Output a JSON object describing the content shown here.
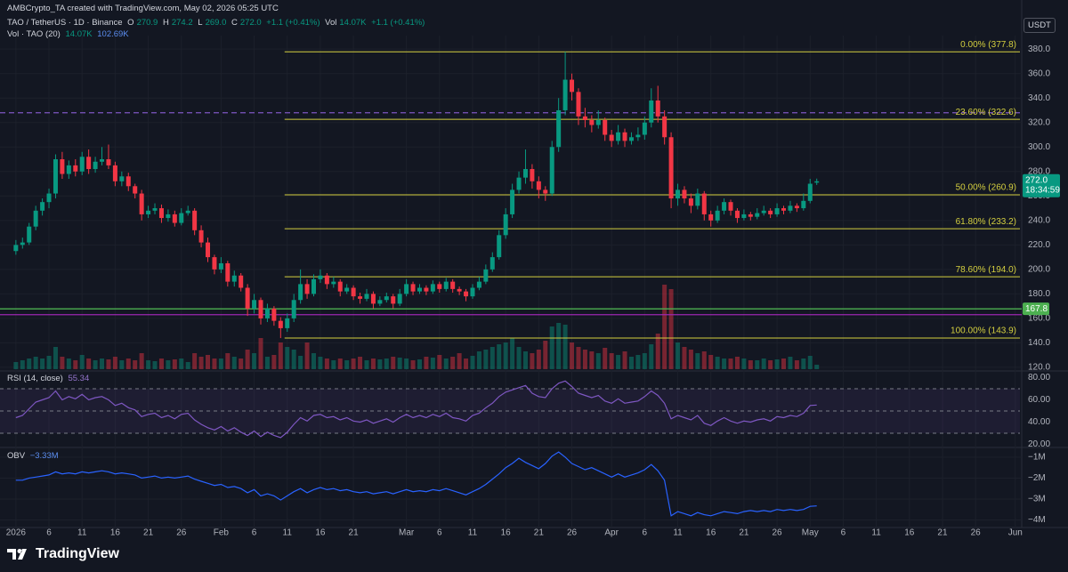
{
  "header": {
    "credit": "AMBCrypto_TA created with TradingView.com, May 02, 2026 05:25 UTC",
    "symbol": "TAO / TetherUS · 1D · Binance",
    "ohlc": [
      {
        "key": "O",
        "value": "270.9"
      },
      {
        "key": "H",
        "value": "274.2"
      },
      {
        "key": "L",
        "value": "269.0"
      },
      {
        "key": "C",
        "value": "272.0"
      }
    ],
    "change": "+1.1 (+0.41%)",
    "vol_key": "Vol",
    "vol_value": "14.07K",
    "vol_change": "+1.1 (+0.41%)",
    "vol_indicator": "Vol · TAO (20)",
    "vol_indicator_values": [
      "14.07K",
      "102.69K"
    ],
    "rsi_label": "RSI (14, close)",
    "rsi_value": "55.34",
    "obv_label": "OBV",
    "obv_value": "−3.33M",
    "currency": "USDT",
    "brand": "TradingView"
  },
  "chart_data": {
    "type": "candlestick",
    "up_color": "#089981",
    "down_color": "#f23645",
    "xlim": [
      -2.4,
      151.7
    ],
    "xticks": [
      {
        "value": 0,
        "label": "2026"
      },
      {
        "value": 5,
        "label": "6"
      },
      {
        "value": 10,
        "label": "11"
      },
      {
        "value": 15,
        "label": "16"
      },
      {
        "value": 20,
        "label": "21"
      },
      {
        "value": 25,
        "label": "26"
      },
      {
        "value": 31,
        "label": "Feb"
      },
      {
        "value": 36,
        "label": "6"
      },
      {
        "value": 41,
        "label": "11"
      },
      {
        "value": 46,
        "label": "16"
      },
      {
        "value": 51,
        "label": "21"
      },
      {
        "value": 59,
        "label": "Mar"
      },
      {
        "value": 64,
        "label": "6"
      },
      {
        "value": 69,
        "label": "11"
      },
      {
        "value": 74,
        "label": "16"
      },
      {
        "value": 79,
        "label": "21"
      },
      {
        "value": 84,
        "label": "26"
      },
      {
        "value": 90,
        "label": "Apr"
      },
      {
        "value": 95,
        "label": "6"
      },
      {
        "value": 100,
        "label": "11"
      },
      {
        "value": 105,
        "label": "16"
      },
      {
        "value": 110,
        "label": "21"
      },
      {
        "value": 115,
        "label": "26"
      },
      {
        "value": 120,
        "label": "May"
      },
      {
        "value": 125,
        "label": "6"
      },
      {
        "value": 130,
        "label": "11"
      },
      {
        "value": 135,
        "label": "16"
      },
      {
        "value": 140,
        "label": "21"
      },
      {
        "value": 145,
        "label": "26"
      },
      {
        "value": 151,
        "label": "Jun"
      }
    ],
    "ylim": [
      118.5,
      398.3
    ],
    "yticks": [
      {
        "value": 120,
        "label": "120.0"
      },
      {
        "value": 140,
        "label": "140.0"
      },
      {
        "value": 160,
        "label": "160.0"
      },
      {
        "value": 180,
        "label": "180.0"
      },
      {
        "value": 200,
        "label": "200.0"
      },
      {
        "value": 220,
        "label": "220.0"
      },
      {
        "value": 240,
        "label": "240.0"
      },
      {
        "value": 260,
        "label": "260.0"
      },
      {
        "value": 280,
        "label": "280.0"
      },
      {
        "value": 300,
        "label": "300.0"
      },
      {
        "value": 320,
        "label": "320.0"
      },
      {
        "value": 340,
        "label": "340.0"
      },
      {
        "value": 360,
        "label": "360.0"
      },
      {
        "value": 380,
        "label": "380.0"
      }
    ],
    "x": [
      0,
      1,
      2,
      3,
      4,
      5,
      6,
      7,
      8,
      9,
      10,
      11,
      12,
      13,
      14,
      15,
      16,
      17,
      18,
      19,
      20,
      21,
      22,
      23,
      24,
      25,
      26,
      27,
      28,
      29,
      30,
      31,
      32,
      33,
      34,
      35,
      36,
      37,
      38,
      39,
      40,
      41,
      42,
      43,
      44,
      45,
      46,
      47,
      48,
      49,
      50,
      51,
      52,
      53,
      54,
      55,
      56,
      57,
      58,
      59,
      60,
      61,
      62,
      63,
      64,
      65,
      66,
      67,
      68,
      69,
      70,
      71,
      72,
      73,
      74,
      75,
      76,
      77,
      78,
      79,
      80,
      81,
      82,
      83,
      84,
      85,
      86,
      87,
      88,
      89,
      90,
      91,
      92,
      93,
      94,
      95,
      96,
      97,
      98,
      99,
      100,
      101,
      102,
      103,
      104,
      105,
      106,
      107,
      108,
      109,
      110,
      111,
      112,
      113,
      114,
      115,
      116,
      117,
      118,
      119,
      120,
      121
    ],
    "candles": [
      [
        215,
        224,
        212,
        220
      ],
      [
        220,
        226,
        217,
        222
      ],
      [
        222,
        238,
        220,
        235
      ],
      [
        235,
        252,
        232,
        248
      ],
      [
        248,
        258,
        244,
        255
      ],
      [
        255,
        266,
        250,
        262
      ],
      [
        262,
        294,
        258,
        290
      ],
      [
        290,
        296,
        274,
        278
      ],
      [
        278,
        289,
        274,
        285
      ],
      [
        285,
        290,
        276,
        280
      ],
      [
        280,
        296,
        277,
        292
      ],
      [
        292,
        298,
        278,
        282
      ],
      [
        282,
        292,
        279,
        288
      ],
      [
        288,
        300,
        285,
        290
      ],
      [
        290,
        302,
        282,
        285
      ],
      [
        285,
        288,
        268,
        272
      ],
      [
        272,
        280,
        268,
        276
      ],
      [
        276,
        279,
        264,
        268
      ],
      [
        268,
        270,
        258,
        262
      ],
      [
        262,
        265,
        240,
        245
      ],
      [
        245,
        252,
        242,
        248
      ],
      [
        248,
        254,
        245,
        250
      ],
      [
        250,
        253,
        238,
        242
      ],
      [
        242,
        249,
        239,
        245
      ],
      [
        245,
        248,
        235,
        238
      ],
      [
        238,
        250,
        236,
        246
      ],
      [
        246,
        252,
        244,
        248
      ],
      [
        248,
        250,
        228,
        232
      ],
      [
        232,
        236,
        218,
        222
      ],
      [
        222,
        226,
        206,
        210
      ],
      [
        210,
        212,
        196,
        200
      ],
      [
        200,
        210,
        197,
        205
      ],
      [
        205,
        207,
        186,
        190
      ],
      [
        190,
        199,
        186,
        195
      ],
      [
        195,
        197,
        182,
        185
      ],
      [
        185,
        188,
        162,
        168
      ],
      [
        168,
        180,
        164,
        175
      ],
      [
        175,
        177,
        155,
        160
      ],
      [
        160,
        172,
        157,
        168
      ],
      [
        168,
        170,
        154,
        158
      ],
      [
        158,
        161,
        143.9,
        152
      ],
      [
        152,
        164,
        149,
        160
      ],
      [
        160,
        180,
        157,
        175
      ],
      [
        175,
        200,
        172,
        188
      ],
      [
        188,
        192,
        176,
        180
      ],
      [
        180,
        196,
        178,
        192
      ],
      [
        192,
        200,
        189,
        195
      ],
      [
        195,
        197,
        184,
        188
      ],
      [
        188,
        194,
        185,
        190
      ],
      [
        190,
        192,
        178,
        182
      ],
      [
        182,
        188,
        180,
        185
      ],
      [
        185,
        187,
        175,
        178
      ],
      [
        178,
        181,
        172,
        176
      ],
      [
        176,
        184,
        174,
        180
      ],
      [
        180,
        182,
        168,
        172
      ],
      [
        172,
        178,
        170,
        175
      ],
      [
        175,
        181,
        173,
        178
      ],
      [
        178,
        180,
        168,
        172
      ],
      [
        172,
        184,
        170,
        180
      ],
      [
        180,
        192,
        178,
        188
      ],
      [
        188,
        190,
        179,
        182
      ],
      [
        182,
        188,
        180,
        185
      ],
      [
        185,
        187,
        179,
        182
      ],
      [
        182,
        191,
        180,
        188
      ],
      [
        188,
        190,
        181,
        184
      ],
      [
        184,
        193,
        182,
        190
      ],
      [
        190,
        192,
        181,
        184
      ],
      [
        184,
        186,
        179,
        182
      ],
      [
        182,
        184,
        174,
        178
      ],
      [
        178,
        188,
        176,
        185
      ],
      [
        185,
        194,
        183,
        190
      ],
      [
        190,
        204,
        188,
        200
      ],
      [
        200,
        214,
        198,
        210
      ],
      [
        210,
        232,
        208,
        228
      ],
      [
        228,
        250,
        225,
        245
      ],
      [
        245,
        270,
        242,
        265
      ],
      [
        265,
        280,
        262,
        275
      ],
      [
        275,
        298,
        270,
        282
      ],
      [
        282,
        286,
        266,
        272
      ],
      [
        272,
        276,
        258,
        265
      ],
      [
        265,
        268,
        256,
        262
      ],
      [
        262,
        305,
        260,
        300
      ],
      [
        300,
        340,
        296,
        330
      ],
      [
        330,
        377.8,
        326,
        355
      ],
      [
        355,
        360,
        338,
        345
      ],
      [
        345,
        348,
        318,
        325
      ],
      [
        325,
        332,
        316,
        322
      ],
      [
        322,
        326,
        312,
        318
      ],
      [
        318,
        330,
        315,
        322
      ],
      [
        322,
        324,
        305,
        310
      ],
      [
        310,
        314,
        300,
        305
      ],
      [
        305,
        318,
        302,
        312
      ],
      [
        312,
        315,
        300,
        305
      ],
      [
        305,
        312,
        302,
        308
      ],
      [
        308,
        316,
        305,
        310
      ],
      [
        310,
        325,
        306,
        320
      ],
      [
        320,
        348,
        316,
        338
      ],
      [
        338,
        350,
        320,
        325
      ],
      [
        325,
        330,
        302,
        308
      ],
      [
        308,
        312,
        250,
        258
      ],
      [
        258,
        270,
        252,
        265
      ],
      [
        265,
        268,
        254,
        258
      ],
      [
        258,
        262,
        246,
        252
      ],
      [
        252,
        266,
        249,
        262
      ],
      [
        262,
        264,
        240,
        245
      ],
      [
        245,
        248,
        235,
        240
      ],
      [
        240,
        252,
        238,
        248
      ],
      [
        248,
        258,
        245,
        255
      ],
      [
        255,
        257,
        244,
        248
      ],
      [
        248,
        250,
        238,
        242
      ],
      [
        242,
        249,
        240,
        245
      ],
      [
        245,
        247,
        240,
        243
      ],
      [
        243,
        250,
        241,
        246
      ],
      [
        246,
        252,
        244,
        248
      ],
      [
        248,
        250,
        242,
        245
      ],
      [
        245,
        254,
        243,
        250
      ],
      [
        250,
        252,
        245,
        248
      ],
      [
        248,
        256,
        246,
        252
      ],
      [
        252,
        254,
        247,
        250
      ],
      [
        250,
        262,
        248,
        256
      ],
      [
        256,
        274,
        254,
        270
      ],
      [
        270.9,
        274.2,
        269.0,
        272.0
      ]
    ],
    "volume": [
      8,
      10,
      12,
      14,
      12,
      15,
      25,
      14,
      12,
      10,
      16,
      12,
      10,
      12,
      11,
      14,
      10,
      12,
      10,
      18,
      10,
      9,
      12,
      10,
      11,
      12,
      8,
      18,
      14,
      16,
      12,
      12,
      18,
      14,
      12,
      22,
      18,
      35,
      14,
      16,
      30,
      25,
      22,
      15,
      30,
      18,
      14,
      12,
      10,
      12,
      10,
      12,
      14,
      10,
      12,
      11,
      12,
      14,
      13,
      12,
      10,
      11,
      14,
      13,
      16,
      12,
      14,
      18,
      12,
      15,
      20,
      22,
      25,
      28,
      30,
      35,
      25,
      20,
      18,
      22,
      32,
      48,
      52,
      50,
      30,
      25,
      22,
      20,
      18,
      24,
      18,
      16,
      20,
      14,
      16,
      18,
      28,
      40,
      95,
      90,
      30,
      25,
      22,
      18,
      20,
      16,
      14,
      12,
      12,
      14,
      12,
      10,
      10,
      12,
      10,
      11,
      12,
      14,
      10,
      12,
      15,
      5
    ],
    "vol_ylim": [
      0,
      100
    ],
    "fib": [
      {
        "value": 377.8,
        "label": "0.00% (377.8)"
      },
      {
        "value": 322.6,
        "label": "23.60% (322.6)"
      },
      {
        "value": 260.9,
        "label": "50.00% (260.9)"
      },
      {
        "value": 233.2,
        "label": "61.80% (233.2)"
      },
      {
        "value": 194.0,
        "label": "78.60% (194.0)"
      },
      {
        "value": 143.9,
        "label": "100.00% (143.9)"
      }
    ],
    "fib_color": "#d4cf3f",
    "hlines": [
      {
        "value": 328,
        "color": "#7e57c2",
        "dashed": true
      },
      {
        "value": 167.8,
        "color": "#4caf50",
        "dashed": false
      },
      {
        "value": 163,
        "color": "#9c27b0",
        "dashed": false
      }
    ],
    "level_label": 167.8,
    "last_price": {
      "value": 272.0,
      "label": "272.0",
      "countdown": "18:34:59"
    },
    "rsi": {
      "values": [
        44,
        46,
        52,
        58,
        60,
        62,
        68,
        60,
        63,
        61,
        65,
        60,
        62,
        63,
        60,
        55,
        57,
        53,
        51,
        45,
        47,
        48,
        44,
        46,
        43,
        47,
        48,
        42,
        38,
        35,
        33,
        36,
        32,
        35,
        31,
        28,
        32,
        27,
        31,
        28,
        26,
        31,
        38,
        44,
        41,
        46,
        47,
        44,
        45,
        42,
        44,
        41,
        40,
        42,
        39,
        41,
        43,
        40,
        44,
        47,
        44,
        46,
        44,
        47,
        45,
        48,
        44,
        43,
        41,
        46,
        48,
        53,
        57,
        63,
        67,
        69,
        71,
        73,
        66,
        63,
        62,
        70,
        75,
        77,
        72,
        66,
        64,
        62,
        64,
        59,
        57,
        61,
        57,
        58,
        59,
        63,
        68,
        64,
        57,
        43,
        46,
        44,
        42,
        46,
        39,
        37,
        41,
        44,
        41,
        39,
        41,
        40,
        42,
        43,
        41,
        45,
        44,
        46,
        45,
        48,
        55,
        55.34
      ],
      "color": "#7e57c2",
      "ylim": [
        18,
        83.6
      ],
      "yticks": [
        {
          "value": 20,
          "label": "20.00"
        },
        {
          "value": 40,
          "label": "40.00"
        },
        {
          "value": 60,
          "label": "60.00"
        },
        {
          "value": 80,
          "label": "80.00"
        }
      ],
      "bands": [
        70,
        50,
        30
      ]
    },
    "obv": {
      "values": [
        -2.1,
        -2.1,
        -2.0,
        -1.95,
        -1.9,
        -1.85,
        -1.7,
        -1.8,
        -1.75,
        -1.8,
        -1.7,
        -1.75,
        -1.7,
        -1.65,
        -1.7,
        -1.8,
        -1.75,
        -1.8,
        -1.85,
        -2.0,
        -1.95,
        -1.9,
        -2.0,
        -1.95,
        -2.0,
        -1.95,
        -1.9,
        -2.05,
        -2.15,
        -2.25,
        -2.35,
        -2.3,
        -2.45,
        -2.4,
        -2.5,
        -2.7,
        -2.55,
        -2.85,
        -2.75,
        -2.85,
        -3.05,
        -2.85,
        -2.65,
        -2.5,
        -2.7,
        -2.55,
        -2.45,
        -2.55,
        -2.5,
        -2.6,
        -2.55,
        -2.65,
        -2.7,
        -2.65,
        -2.75,
        -2.7,
        -2.65,
        -2.75,
        -2.65,
        -2.55,
        -2.65,
        -2.6,
        -2.65,
        -2.55,
        -2.6,
        -2.5,
        -2.6,
        -2.7,
        -2.8,
        -2.65,
        -2.5,
        -2.3,
        -2.05,
        -1.8,
        -1.5,
        -1.3,
        -1.05,
        -1.25,
        -1.4,
        -1.55,
        -1.3,
        -0.95,
        -0.75,
        -1.0,
        -1.3,
        -1.45,
        -1.6,
        -1.5,
        -1.65,
        -1.8,
        -1.95,
        -1.8,
        -1.95,
        -1.85,
        -1.75,
        -1.6,
        -1.35,
        -1.65,
        -2.1,
        -3.8,
        -3.6,
        -3.7,
        -3.8,
        -3.65,
        -3.75,
        -3.8,
        -3.7,
        -3.6,
        -3.65,
        -3.7,
        -3.6,
        -3.55,
        -3.6,
        -3.55,
        -3.6,
        -3.5,
        -3.55,
        -3.5,
        -3.55,
        -3.5,
        -3.35,
        -3.33
      ],
      "color": "#2962ff",
      "ylim": [
        -4.32,
        -0.62
      ],
      "yticks": [
        {
          "value": -1,
          "label": "−1M"
        },
        {
          "value": -2,
          "label": "−2M"
        },
        {
          "value": -3,
          "label": "−3M"
        },
        {
          "value": -4,
          "label": "−4M"
        }
      ]
    }
  }
}
